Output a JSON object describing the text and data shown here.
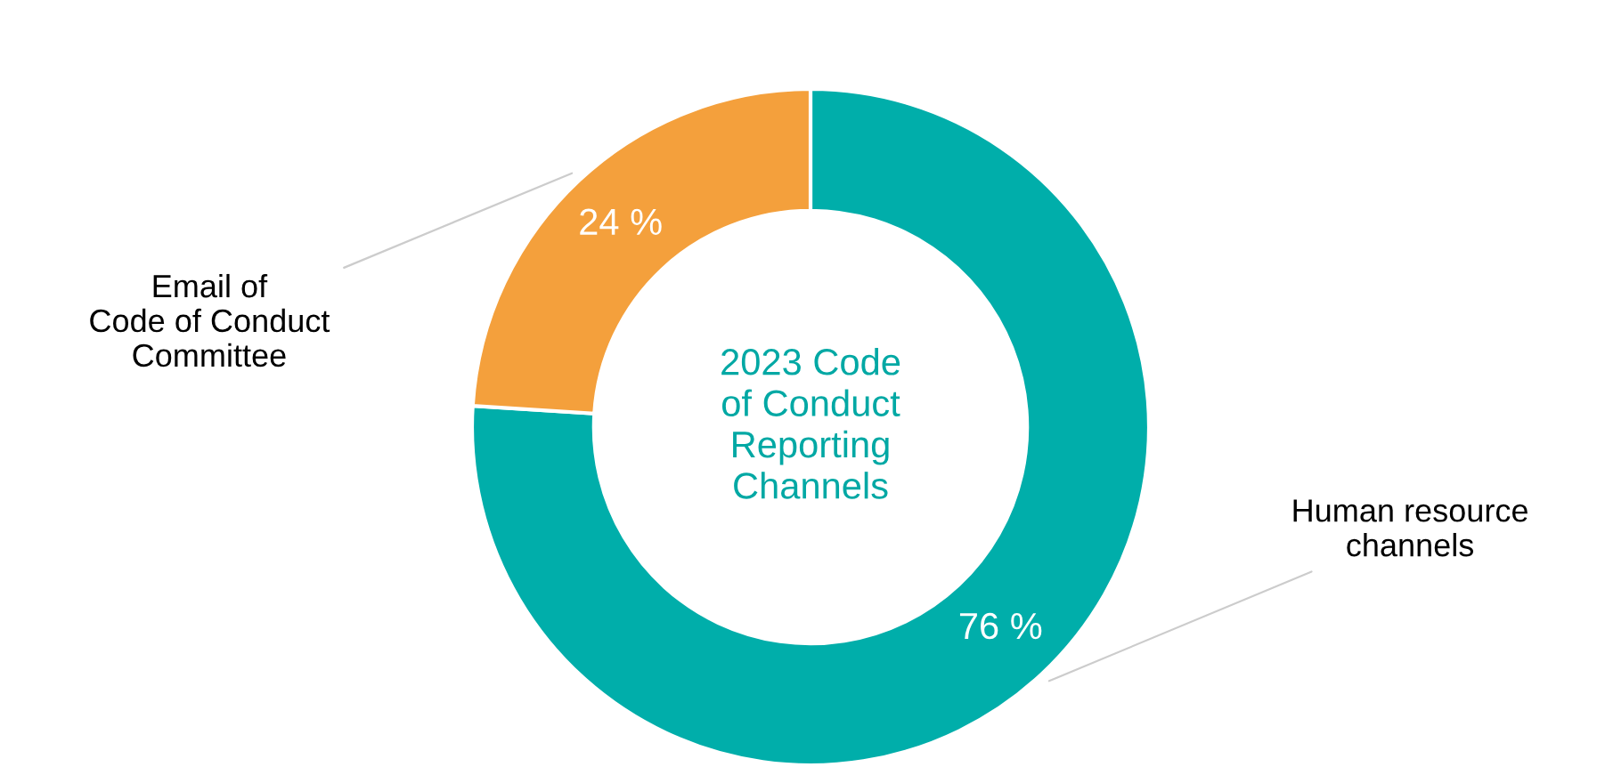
{
  "chart_data": {
    "type": "donut",
    "title": "2023 Code\nof Conduct\nReporting\nChannels",
    "categories": [
      "Human resource\nchannels",
      "Email of\nCode of Conduct\nCommittee"
    ],
    "values": [
      76,
      24
    ],
    "colors": [
      "#00aeaa",
      "#f4a03c"
    ],
    "value_labels": [
      "76 %",
      "24 %"
    ]
  }
}
